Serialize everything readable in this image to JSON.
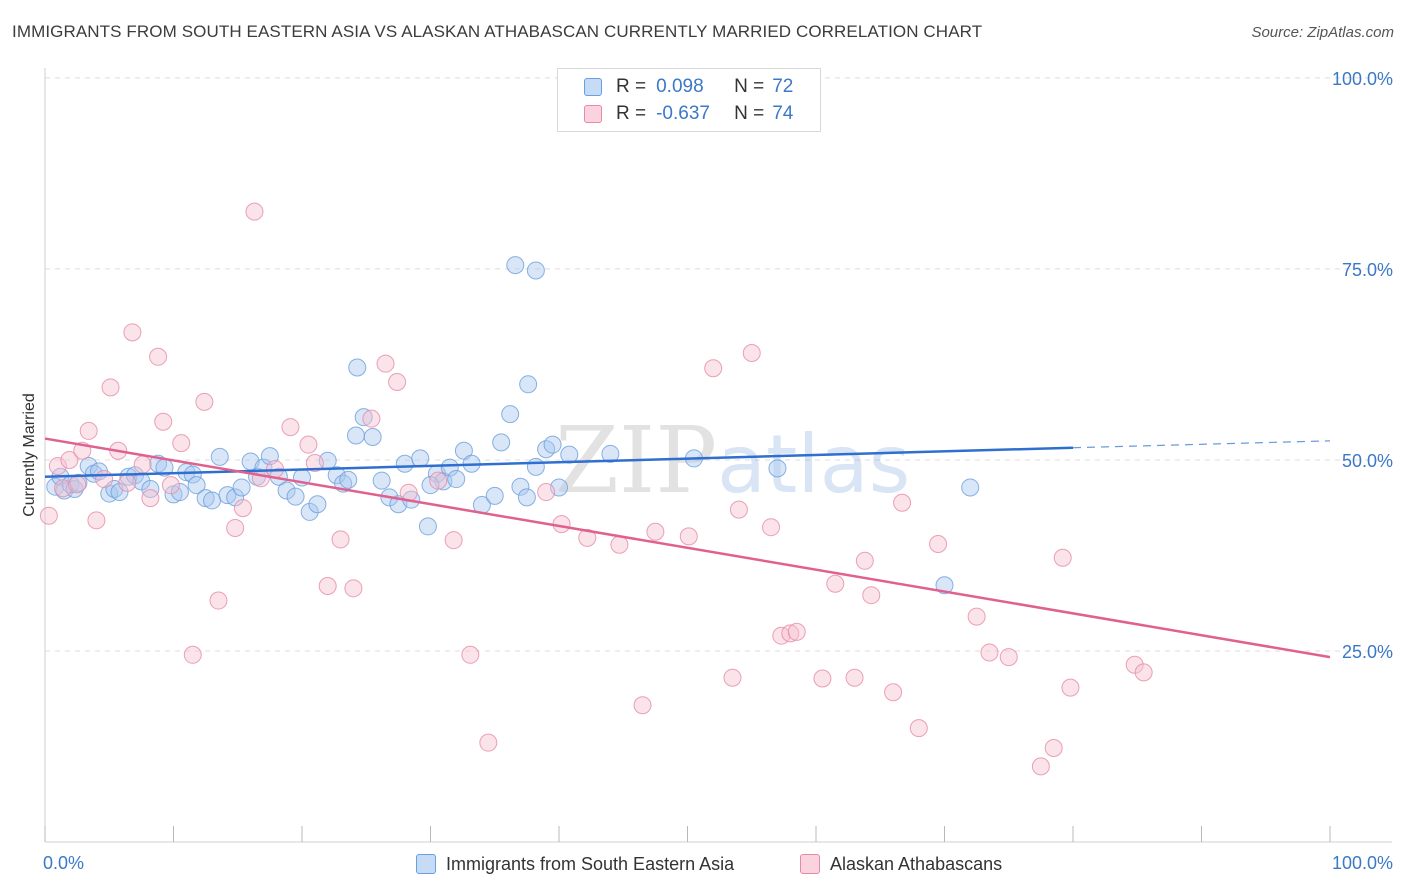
{
  "title": "IMMIGRANTS FROM SOUTH EASTERN ASIA VS ALASKAN ATHABASCAN CURRENTLY MARRIED CORRELATION CHART",
  "source": "Source: ZipAtlas.com",
  "watermark": {
    "zip": "ZIP",
    "atlas": "atlas"
  },
  "legend": {
    "rows": [
      {
        "r_label": "R =",
        "r_value": "0.098",
        "n_label": "N =",
        "n_value": "72",
        "color": "#a8c8f0",
        "border": "#6b9fdc"
      },
      {
        "r_label": "R =",
        "r_value": "-0.637",
        "n_label": "N =",
        "n_value": "74",
        "color": "#f7c0d0",
        "border": "#e68aa8"
      }
    ]
  },
  "bottom_legend": [
    "Immigrants from South Eastern Asia",
    "Alaskan Athabascans"
  ],
  "chart_data": {
    "type": "scatter",
    "title": "IMMIGRANTS FROM SOUTH EASTERN ASIA VS ALASKAN ATHABASCAN CURRENTLY MARRIED CORRELATION CHART",
    "xlabel": "",
    "ylabel": "Currently Married",
    "xlim": [
      0,
      100
    ],
    "ylim": [
      0,
      100
    ],
    "x_tick_labels": [
      "0.0%",
      "100.0%"
    ],
    "y_ticks": [
      25,
      50,
      75,
      100
    ],
    "y_tick_labels": [
      "25.0%",
      "50.0%",
      "75.0%",
      "100.0%"
    ],
    "grid": true,
    "series": [
      {
        "name": "Immigrants from South Eastern Asia",
        "color": "#6b9fdc",
        "fill": "#a8c8f0",
        "trend": {
          "x0": 0,
          "y0": 47.8,
          "x1": 80,
          "y1": 51.6,
          "dash_to": 100,
          "dash_y": 52.5
        },
        "points": [
          [
            0.8,
            46.5
          ],
          [
            1.2,
            47.8
          ],
          [
            1.5,
            46.0
          ],
          [
            2.0,
            46.8
          ],
          [
            2.3,
            46.2
          ],
          [
            2.6,
            47.0
          ],
          [
            3.4,
            49.2
          ],
          [
            3.8,
            48.2
          ],
          [
            4.2,
            48.5
          ],
          [
            5.0,
            45.6
          ],
          [
            5.4,
            46.2
          ],
          [
            5.8,
            45.8
          ],
          [
            6.5,
            47.8
          ],
          [
            7.0,
            48.0
          ],
          [
            7.5,
            47.2
          ],
          [
            8.2,
            46.2
          ],
          [
            8.8,
            49.5
          ],
          [
            9.3,
            49.0
          ],
          [
            10.0,
            45.5
          ],
          [
            10.5,
            45.8
          ],
          [
            11.0,
            48.4
          ],
          [
            11.5,
            48.1
          ],
          [
            11.8,
            46.7
          ],
          [
            12.5,
            45.0
          ],
          [
            13.0,
            44.7
          ],
          [
            13.6,
            50.4
          ],
          [
            14.2,
            45.4
          ],
          [
            14.8,
            45.1
          ],
          [
            15.3,
            46.4
          ],
          [
            16.0,
            49.8
          ],
          [
            16.5,
            47.8
          ],
          [
            17.0,
            49.0
          ],
          [
            17.5,
            50.5
          ],
          [
            18.2,
            47.8
          ],
          [
            18.8,
            46.0
          ],
          [
            19.5,
            45.2
          ],
          [
            20.0,
            47.7
          ],
          [
            20.6,
            43.2
          ],
          [
            21.2,
            44.2
          ],
          [
            22.0,
            49.9
          ],
          [
            22.7,
            48.0
          ],
          [
            23.2,
            46.9
          ],
          [
            23.6,
            47.4
          ],
          [
            24.2,
            53.2
          ],
          [
            24.8,
            55.6
          ],
          [
            25.5,
            53.0
          ],
          [
            26.2,
            47.3
          ],
          [
            26.8,
            45.1
          ],
          [
            27.5,
            44.2
          ],
          [
            28.0,
            49.5
          ],
          [
            28.5,
            44.8
          ],
          [
            29.2,
            50.2
          ],
          [
            29.8,
            41.3
          ],
          [
            30.5,
            48.2
          ],
          [
            31.0,
            47.2
          ],
          [
            31.5,
            49.0
          ],
          [
            32.0,
            47.5
          ],
          [
            32.6,
            51.2
          ],
          [
            33.2,
            49.5
          ],
          [
            34.0,
            44.1
          ],
          [
            35.0,
            45.3
          ],
          [
            35.5,
            52.3
          ],
          [
            36.2,
            56.0
          ],
          [
            37.0,
            46.5
          ],
          [
            37.5,
            45.1
          ],
          [
            38.2,
            49.1
          ],
          [
            39.0,
            51.4
          ],
          [
            39.5,
            52.0
          ],
          [
            40.0,
            46.4
          ],
          [
            40.8,
            50.7
          ],
          [
            44.0,
            50.8
          ],
          [
            50.5,
            50.2
          ],
          [
            37.6,
            59.9
          ],
          [
            24.3,
            62.1
          ],
          [
            30.0,
            46.7
          ],
          [
            36.6,
            75.5
          ],
          [
            38.2,
            74.8
          ],
          [
            70.0,
            33.6
          ],
          [
            72.0,
            46.4
          ],
          [
            57.0,
            48.9
          ]
        ]
      },
      {
        "name": "Alaskan Athabascans",
        "color": "#e68aa8",
        "fill": "#f7c0d0",
        "trend": {
          "x0": 0,
          "y0": 52.8,
          "x1": 100,
          "y1": 24.2
        },
        "points": [
          [
            0.3,
            42.7
          ],
          [
            1.0,
            49.2
          ],
          [
            1.4,
            46.3
          ],
          [
            1.9,
            50.0
          ],
          [
            2.5,
            46.8
          ],
          [
            2.9,
            51.2
          ],
          [
            3.4,
            53.8
          ],
          [
            4.0,
            42.1
          ],
          [
            4.6,
            47.5
          ],
          [
            5.1,
            59.5
          ],
          [
            5.7,
            51.2
          ],
          [
            6.4,
            47.0
          ],
          [
            6.8,
            66.7
          ],
          [
            7.6,
            49.4
          ],
          [
            8.2,
            45.0
          ],
          [
            8.8,
            63.5
          ],
          [
            9.2,
            55.0
          ],
          [
            9.8,
            46.7
          ],
          [
            10.6,
            52.2
          ],
          [
            11.5,
            24.5
          ],
          [
            12.4,
            57.6
          ],
          [
            13.5,
            31.6
          ],
          [
            14.8,
            41.1
          ],
          [
            15.4,
            43.7
          ],
          [
            16.3,
            82.5
          ],
          [
            16.8,
            47.6
          ],
          [
            17.9,
            48.8
          ],
          [
            19.1,
            54.3
          ],
          [
            20.5,
            52.0
          ],
          [
            21.0,
            49.6
          ],
          [
            22.0,
            33.5
          ],
          [
            23.0,
            39.6
          ],
          [
            24.0,
            33.2
          ],
          [
            25.4,
            55.4
          ],
          [
            26.5,
            62.6
          ],
          [
            27.4,
            60.2
          ],
          [
            28.3,
            45.7
          ],
          [
            30.6,
            47.3
          ],
          [
            31.8,
            39.5
          ],
          [
            33.1,
            24.5
          ],
          [
            34.5,
            13.0
          ],
          [
            40.2,
            41.6
          ],
          [
            42.2,
            39.8
          ],
          [
            44.7,
            38.9
          ],
          [
            46.5,
            17.9
          ],
          [
            47.5,
            40.6
          ],
          [
            50.1,
            40.0
          ],
          [
            52.0,
            62.0
          ],
          [
            53.5,
            21.5
          ],
          [
            54.0,
            43.5
          ],
          [
            55.0,
            64.0
          ],
          [
            56.5,
            41.2
          ],
          [
            57.3,
            27.0
          ],
          [
            58.0,
            27.3
          ],
          [
            58.5,
            27.5
          ],
          [
            60.5,
            21.4
          ],
          [
            61.5,
            33.8
          ],
          [
            63.0,
            21.5
          ],
          [
            63.8,
            36.8
          ],
          [
            64.3,
            32.3
          ],
          [
            66.0,
            19.6
          ],
          [
            66.7,
            44.4
          ],
          [
            68.0,
            14.9
          ],
          [
            69.5,
            39.0
          ],
          [
            72.5,
            29.5
          ],
          [
            73.5,
            24.8
          ],
          [
            75.0,
            24.2
          ],
          [
            77.5,
            9.9
          ],
          [
            78.5,
            12.3
          ],
          [
            79.2,
            37.2
          ],
          [
            79.8,
            20.2
          ],
          [
            84.8,
            23.2
          ],
          [
            85.5,
            22.2
          ],
          [
            39.0,
            45.8
          ]
        ]
      }
    ]
  }
}
